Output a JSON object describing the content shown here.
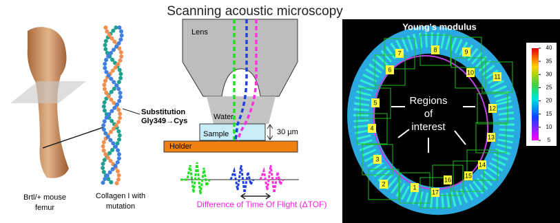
{
  "title": "Scanning acoustic microscopy",
  "femur_panel": {
    "label_lines": [
      "Brtl/+ mouse",
      "femur"
    ]
  },
  "collagen_panel": {
    "label_lines": [
      "Collagen I with",
      "mutation"
    ],
    "mutation_lines": [
      "Substitution",
      "Gly349→Cys"
    ]
  },
  "sam_panel": {
    "lens": "Lens",
    "water": "Water",
    "sample": "Sample",
    "thickness": "30 µm",
    "holder": "Holder",
    "tof": "Difference of Time Of Flight (ΔTOF)"
  },
  "modulus_panel": {
    "title": "Young's modulus",
    "regions_label_lines": [
      "Regions",
      "of",
      "interest"
    ],
    "colorbar_ticks": [
      40,
      35,
      30,
      25,
      20,
      15,
      10,
      5
    ],
    "region_numbers": [
      1,
      2,
      3,
      4,
      5,
      6,
      7,
      8,
      9,
      10,
      11,
      12,
      13,
      14,
      15,
      16,
      17
    ]
  }
}
